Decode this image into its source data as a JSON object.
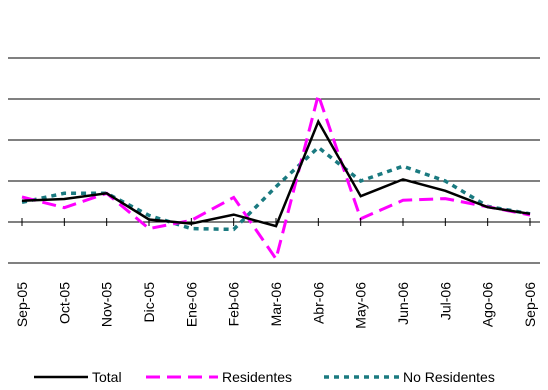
{
  "chart_data": {
    "type": "line",
    "categories": [
      "Sep-05",
      "Oct-05",
      "Nov-05",
      "Dic-05",
      "Ene-06",
      "Feb-06",
      "Mar-06",
      "Abr-06",
      "May-06",
      "Jun-06",
      "Jul-06",
      "Ago-06",
      "Sep-06"
    ],
    "ylim": [
      -10,
      50
    ],
    "grid": true,
    "legend": "bottom",
    "series": [
      {
        "name": "Total",
        "color": "#000000",
        "style": "solid",
        "values": [
          5.2,
          5.6,
          7.0,
          0.6,
          -0.4,
          1.8,
          -1.0,
          24.5,
          6.3,
          10.4,
          7.6,
          3.6,
          2.0
        ]
      },
      {
        "name": "Residentes",
        "color": "#ff00ff",
        "style": "dashed",
        "values": [
          6.1,
          3.5,
          7.0,
          -1.6,
          0.4,
          6.0,
          -9.0,
          31.0,
          0.8,
          5.3,
          5.7,
          3.7,
          1.7
        ]
      },
      {
        "name": "No Residentes",
        "color": "#1a7a80",
        "style": "dotted",
        "values": [
          4.8,
          7.0,
          7.0,
          1.6,
          -1.6,
          -1.8,
          8.6,
          18.2,
          10.0,
          13.6,
          10.0,
          3.8,
          2.0
        ]
      }
    ]
  }
}
